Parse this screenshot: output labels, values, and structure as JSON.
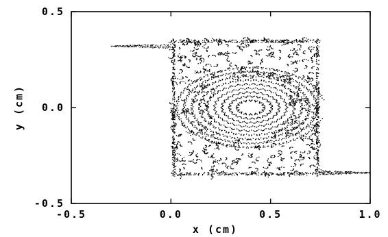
{
  "chart_data": {
    "type": "scatter",
    "title": "",
    "xlabel": "x (cm)",
    "ylabel": "y (cm)",
    "xlim": [
      -0.5,
      1.0
    ],
    "ylim": [
      -0.5,
      0.5
    ],
    "x_ticks": [
      -0.5,
      0.0,
      0.5,
      1.0
    ],
    "y_ticks": [
      -0.5,
      0.0,
      0.5
    ],
    "x_tick_labels": [
      "-0.5",
      "0.0",
      "0.5",
      "1.0"
    ],
    "y_tick_labels": [
      "-0.5",
      "0.0",
      "0.5"
    ],
    "grid": false,
    "legend": "none",
    "marker_color": "#000000",
    "pattern": {
      "region_x": [
        0.0,
        0.75
      ],
      "region_y": [
        -0.36,
        0.36
      ],
      "vortex_center": [
        0.4,
        0.0
      ],
      "upper_tail": {
        "x": [
          -0.3,
          0.0
        ],
        "y": 0.32
      },
      "lower_tail": {
        "x": [
          0.75,
          1.0
        ],
        "y": -0.34
      }
    }
  }
}
